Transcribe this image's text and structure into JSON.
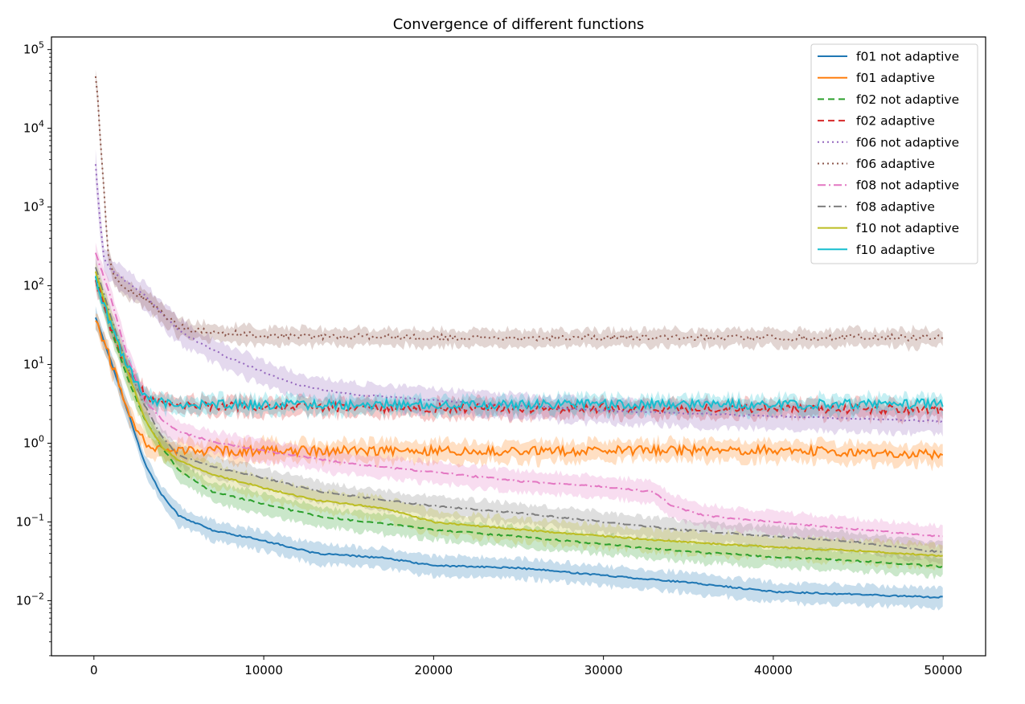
{
  "chart_data": {
    "type": "line",
    "title": "Convergence of different functions",
    "xlabel": "",
    "ylabel": "",
    "xlim": [
      -2500,
      52500
    ],
    "ylim_log10": [
      -2.7,
      5.16
    ],
    "yscale": "log",
    "grid": false,
    "legend_position": "top-right",
    "x_ticks": [
      {
        "value": 0,
        "label": "0"
      },
      {
        "value": 10000,
        "label": "10000"
      },
      {
        "value": 20000,
        "label": "20000"
      },
      {
        "value": 30000,
        "label": "30000"
      },
      {
        "value": 40000,
        "label": "40000"
      },
      {
        "value": 50000,
        "label": "50000"
      }
    ],
    "y_ticks": [
      {
        "exp": -2,
        "base": "10",
        "sup": "−2"
      },
      {
        "exp": -1,
        "base": "10",
        "sup": "−1"
      },
      {
        "exp": 0,
        "base": "10",
        "sup": "0"
      },
      {
        "exp": 1,
        "base": "10",
        "sup": "1"
      },
      {
        "exp": 2,
        "base": "10",
        "sup": "2"
      },
      {
        "exp": 3,
        "base": "10",
        "sup": "3"
      },
      {
        "exp": 4,
        "base": "10",
        "sup": "4"
      },
      {
        "exp": 5,
        "base": "10",
        "sup": "5"
      }
    ],
    "series": [
      {
        "name": "f01 not adaptive",
        "color": "#1f77b4",
        "dash": "solid",
        "noise": 0.01,
        "band": 0.12,
        "x": [
          100,
          1000,
          2000,
          3000,
          4000,
          5000,
          7000,
          10000,
          13000,
          17000,
          20000,
          25000,
          30000,
          35000,
          40000,
          45000,
          50000
        ],
        "y": [
          40,
          11,
          2.5,
          0.55,
          0.22,
          0.12,
          0.078,
          0.058,
          0.04,
          0.035,
          0.028,
          0.026,
          0.021,
          0.017,
          0.013,
          0.012,
          0.011
        ]
      },
      {
        "name": "f01 adaptive",
        "color": "#ff7f0e",
        "dash": "solid",
        "noise": 0.06,
        "band": 0.12,
        "x": [
          100,
          1000,
          2000,
          3000,
          4000,
          5000,
          6000,
          8000,
          10000,
          20000,
          30000,
          40000,
          50000
        ],
        "y": [
          38,
          11,
          2.6,
          1.0,
          0.85,
          0.8,
          0.8,
          0.8,
          0.8,
          0.8,
          0.8,
          0.82,
          0.72
        ]
      },
      {
        "name": "f02 not adaptive",
        "color": "#2ca02c",
        "dash": "8,5",
        "noise": 0.01,
        "band": 0.12,
        "x": [
          100,
          1000,
          2000,
          3000,
          4000,
          5000,
          7000,
          10000,
          13000,
          17000,
          20000,
          25000,
          30000,
          35000,
          40000,
          45000,
          50000
        ],
        "y": [
          130,
          28,
          6.5,
          2.0,
          0.9,
          0.45,
          0.24,
          0.17,
          0.12,
          0.095,
          0.08,
          0.065,
          0.052,
          0.042,
          0.036,
          0.032,
          0.027
        ]
      },
      {
        "name": "f02 adaptive",
        "color": "#d62728",
        "dash": "8,5",
        "noise": 0.06,
        "band": 0.1,
        "x": [
          100,
          1000,
          2000,
          3000,
          4000,
          5000,
          6000,
          10000,
          20000,
          30000,
          40000,
          50000
        ],
        "y": [
          120,
          28,
          9,
          4,
          3.2,
          3.0,
          3.0,
          2.9,
          2.8,
          2.8,
          2.8,
          2.7
        ]
      },
      {
        "name": "f06 not adaptive",
        "color": "#9467bd",
        "dash": "2,4",
        "noise": 0.01,
        "band": 0.15,
        "x": [
          100,
          300,
          600,
          1000,
          2000,
          3000,
          4000,
          5000,
          6000,
          8000,
          10000,
          12000,
          15000,
          20000,
          25000,
          30000,
          40000,
          50000
        ],
        "y": [
          3500,
          900,
          220,
          160,
          110,
          75,
          45,
          27,
          20,
          12,
          8,
          5.5,
          4.2,
          3.5,
          3.0,
          2.6,
          2.2,
          1.9
        ]
      },
      {
        "name": "f06 adaptive",
        "color": "#8c564b",
        "dash": "2,4",
        "noise": 0.04,
        "band": 0.1,
        "x": [
          100,
          200,
          400,
          600,
          800,
          1200,
          2000,
          3000,
          4000,
          5000,
          6000,
          8000,
          10000,
          20000,
          30000,
          40000,
          50000
        ],
        "y": [
          45000,
          30000,
          6000,
          1500,
          300,
          120,
          90,
          70,
          45,
          30,
          27,
          25,
          23,
          22,
          22,
          22,
          22
        ]
      },
      {
        "name": "f08 not adaptive",
        "color": "#e377c2",
        "dash": "10,4,2,4",
        "noise": 0.01,
        "band": 0.13,
        "x": [
          100,
          1000,
          2000,
          3000,
          4000,
          5000,
          7000,
          10000,
          15000,
          20000,
          25000,
          30000,
          33000,
          34000,
          36000,
          40000,
          45000,
          50000
        ],
        "y": [
          260,
          70,
          12,
          3.5,
          2.0,
          1.4,
          1.05,
          0.8,
          0.55,
          0.43,
          0.33,
          0.28,
          0.24,
          0.16,
          0.12,
          0.1,
          0.08,
          0.065
        ]
      },
      {
        "name": "f08 adaptive",
        "color": "#7f7f7f",
        "dash": "10,4,2,4",
        "noise": 0.01,
        "band": 0.12,
        "x": [
          100,
          1000,
          2000,
          3000,
          4000,
          5000,
          7000,
          10000,
          13000,
          17000,
          20000,
          25000,
          30000,
          35000,
          40000,
          45000,
          50000
        ],
        "y": [
          170,
          40,
          9,
          3.0,
          1.2,
          0.7,
          0.5,
          0.36,
          0.25,
          0.19,
          0.16,
          0.13,
          0.1,
          0.078,
          0.066,
          0.055,
          0.041
        ]
      },
      {
        "name": "f10 not adaptive",
        "color": "#bcbd22",
        "dash": "solid",
        "noise": 0.01,
        "band": 0.14,
        "x": [
          100,
          1000,
          2000,
          3000,
          4000,
          5000,
          7000,
          10000,
          13000,
          17000,
          20000,
          25000,
          30000,
          35000,
          40000,
          45000,
          50000
        ],
        "y": [
          150,
          35,
          8,
          2.0,
          0.9,
          0.6,
          0.4,
          0.27,
          0.19,
          0.15,
          0.1,
          0.08,
          0.066,
          0.055,
          0.048,
          0.043,
          0.037
        ]
      },
      {
        "name": "f10 adaptive",
        "color": "#17becf",
        "dash": "solid",
        "noise": 0.06,
        "band": 0.1,
        "x": [
          100,
          1000,
          2000,
          3000,
          4000,
          5000,
          6000,
          10000,
          20000,
          30000,
          40000,
          50000
        ],
        "y": [
          120,
          30,
          9,
          4,
          3.3,
          3.1,
          3.1,
          3.1,
          3.1,
          3.1,
          3.1,
          3.2
        ]
      }
    ]
  }
}
